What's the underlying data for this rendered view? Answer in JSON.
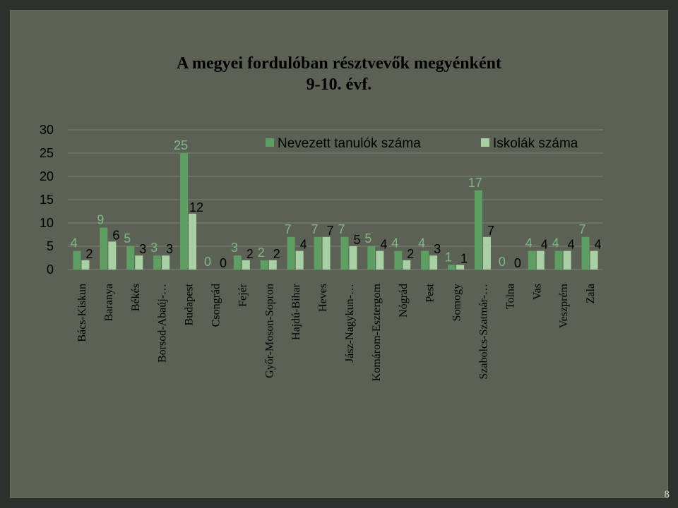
{
  "slide": {
    "title_line1": "A  megyei fordulóban résztvevők megyénként",
    "title_line2": "9-10. évf.",
    "page_number": "8"
  },
  "colors": {
    "series1": "#5f9e62",
    "series2": "#a9cfa5",
    "series1_label": "#80b783",
    "series2_label": "#000000",
    "gridline": "#7e8478",
    "axis_text": "#000000"
  },
  "chart_data": {
    "type": "bar",
    "ylim": [
      0,
      30
    ],
    "yticks": [
      0,
      5,
      10,
      15,
      20,
      25,
      30
    ],
    "grid": true,
    "legend_position": "top-right",
    "categories": [
      "Bács-Kiskun",
      "Baranya",
      "Békés",
      "Borsod-Abaúj-…",
      "Budapest",
      "Csongrád",
      "Fejér",
      "Győr-Moson-Sopron",
      "Hajdú-Bihar",
      "Heves",
      "Jász-Nagykun-…",
      "Komárom-Esztergom",
      "Nógrád",
      "Pest",
      "Somogy",
      "Szabolcs-Szatmár-…",
      "Tolna",
      "Vas",
      "Veszprém",
      "Zala"
    ],
    "series": [
      {
        "name": "Nevezett tanulók száma",
        "values": [
          4,
          9,
          5,
          3,
          25,
          0,
          3,
          2,
          7,
          7,
          7,
          5,
          4,
          4,
          1,
          17,
          0,
          4,
          4,
          7
        ]
      },
      {
        "name": "Iskolák száma",
        "values": [
          2,
          6,
          3,
          3,
          12,
          0,
          2,
          2,
          4,
          7,
          5,
          4,
          2,
          3,
          1,
          7,
          0,
          4,
          4,
          4
        ]
      }
    ]
  }
}
